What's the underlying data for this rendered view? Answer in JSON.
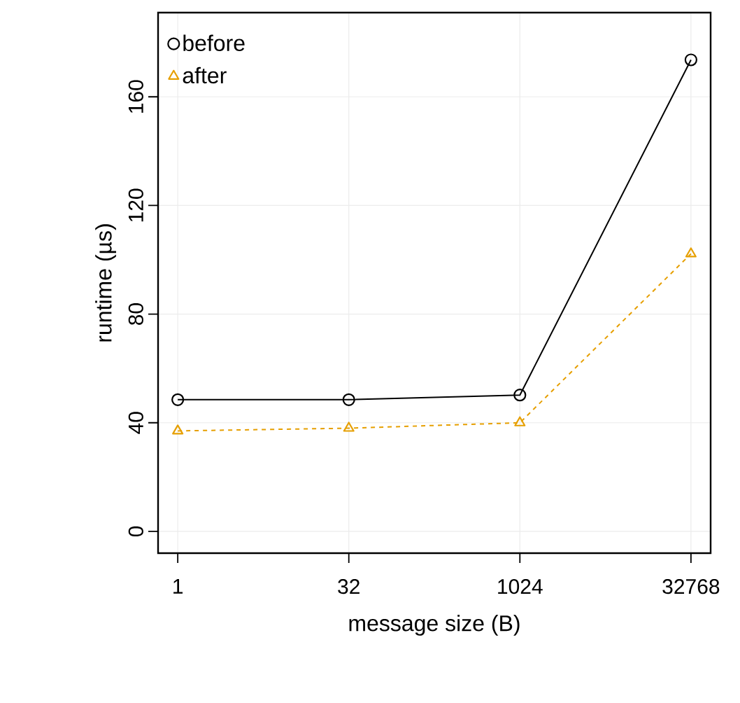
{
  "chart_data": {
    "type": "line",
    "xlabel": "message size (B)",
    "ylabel": "runtime (µs)",
    "categories": [
      "1",
      "32",
      "1024",
      "32768"
    ],
    "series": [
      {
        "name": "before",
        "color": "#000000",
        "values": [
          48.5,
          48.5,
          50.2,
          173.6
        ],
        "marker": "circle",
        "line_style": "solid"
      },
      {
        "name": "after",
        "color": "#e69f00",
        "values": [
          37,
          38,
          40,
          102.2
        ],
        "marker": "triangle",
        "line_style": "dashed"
      }
    ],
    "ylim": [
      -8,
      191
    ],
    "yticks": [
      0,
      40,
      80,
      120,
      160
    ],
    "grid": true,
    "legend": "top left"
  }
}
